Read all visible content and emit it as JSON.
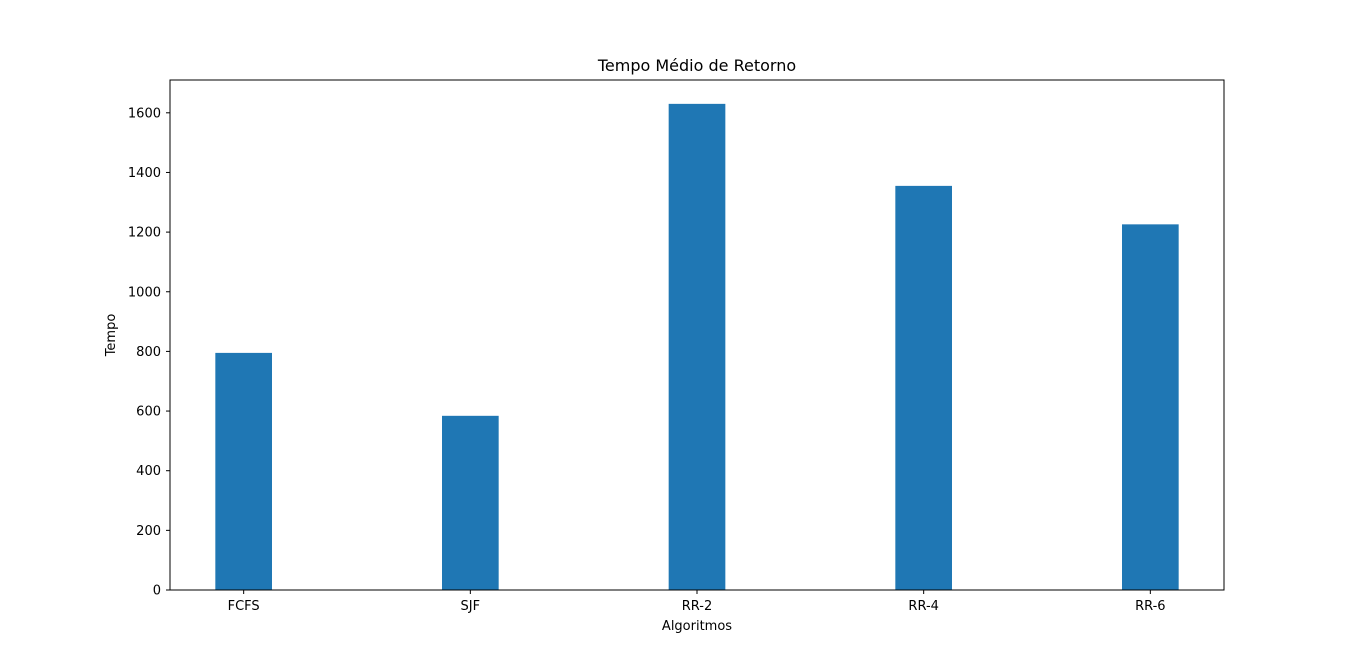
{
  "chart_data": {
    "type": "bar",
    "title": "Tempo Médio de Retorno",
    "xlabel": "Algoritmos",
    "ylabel": "Tempo",
    "categories": [
      "FCFS",
      "SJF",
      "RR-2",
      "RR-4",
      "RR-6"
    ],
    "values": [
      795,
      584,
      1630,
      1355,
      1226
    ],
    "ylim": [
      0,
      1710
    ],
    "yticks": [
      0,
      200,
      400,
      600,
      800,
      1000,
      1200,
      1400,
      1600
    ],
    "grid": false,
    "bar_color": "#1f77b4"
  }
}
